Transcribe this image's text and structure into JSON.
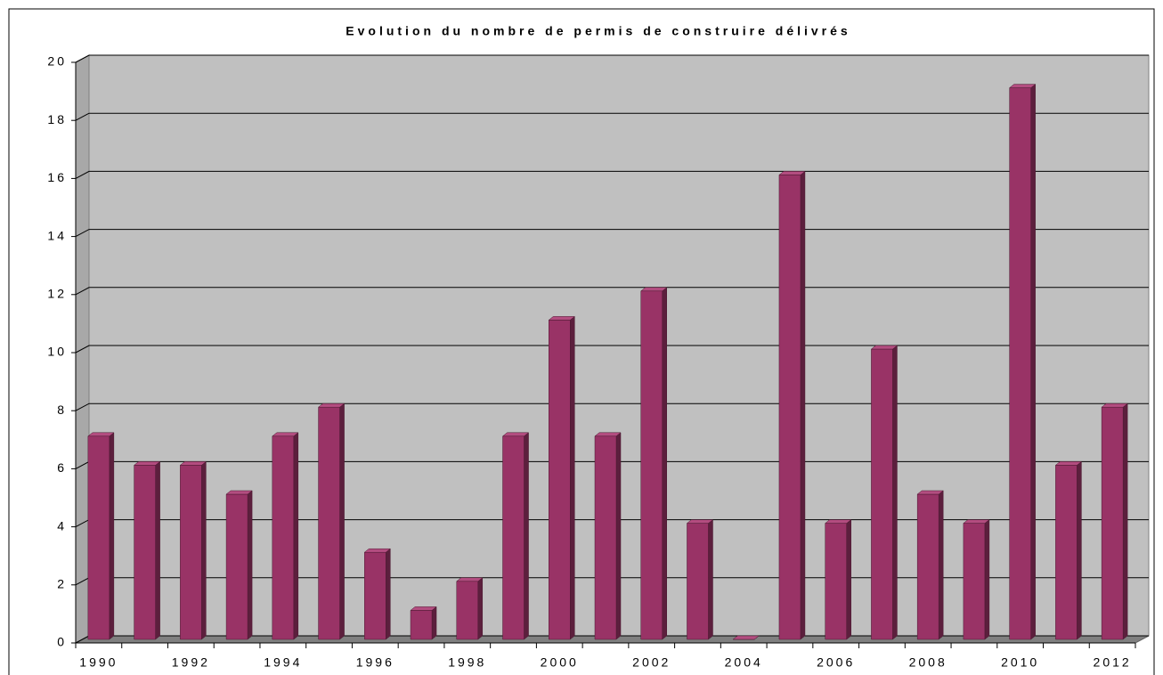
{
  "chart_data": {
    "type": "bar",
    "title": "Evolution du nombre de permis de construire délivrés",
    "categories": [
      "1990",
      null,
      "1992",
      null,
      "1994",
      null,
      "1996",
      null,
      "1998",
      null,
      "2000",
      null,
      "2002",
      null,
      "2004",
      null,
      "2006",
      null,
      "2008",
      null,
      "2010",
      null,
      "2012"
    ],
    "values": [
      7,
      6,
      6,
      5,
      7,
      8,
      3,
      1,
      2,
      7,
      11,
      7,
      12,
      4,
      0,
      16,
      4,
      10,
      5,
      4,
      19,
      6,
      8
    ],
    "color": "#993366",
    "ylim": [
      0,
      20
    ],
    "yticks": [
      0,
      2,
      4,
      6,
      8,
      10,
      12,
      14,
      16,
      18,
      20
    ],
    "grid": true
  }
}
